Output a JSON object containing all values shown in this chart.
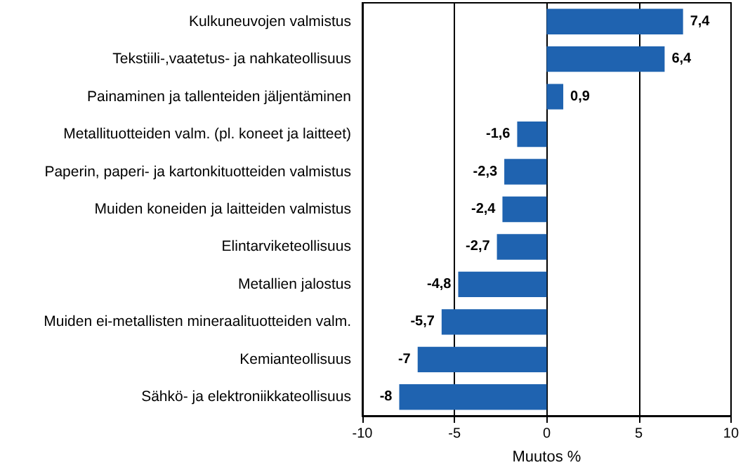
{
  "chart_data": {
    "type": "bar",
    "orientation": "horizontal",
    "xlabel": "Muutos %",
    "categories": [
      "Kulkuneuvojen valmistus",
      "Tekstiili-,vaatetus- ja nahkateollisuus",
      "Painaminen ja tallenteiden jäljentäminen",
      "Metallituotteiden valm. (pl. koneet ja laitteet)",
      "Paperin, paperi- ja kartonkituotteiden valmistus",
      "Muiden koneiden ja laitteiden valmistus",
      "Elintarviketeollisuus",
      "Metallien jalostus",
      "Muiden ei-metallisten mineraalituotteiden valm.",
      "Kemianteollisuus",
      "Sähkö- ja elektroniikkateollisuus"
    ],
    "values": [
      7.4,
      6.4,
      0.9,
      -1.6,
      -2.3,
      -2.4,
      -2.7,
      -4.8,
      -5.7,
      -7,
      -8
    ],
    "value_labels": [
      "7,4",
      "6,4",
      "0,9",
      "-1,6",
      "-2,3",
      "-2,4",
      "-2,7",
      "-4,8",
      "-5,7",
      "-7",
      "-8"
    ],
    "color": "#1f63b0",
    "xlim": [
      -10,
      10
    ],
    "xticks": [
      -10,
      -5,
      0,
      5,
      10
    ],
    "grid": "x"
  }
}
